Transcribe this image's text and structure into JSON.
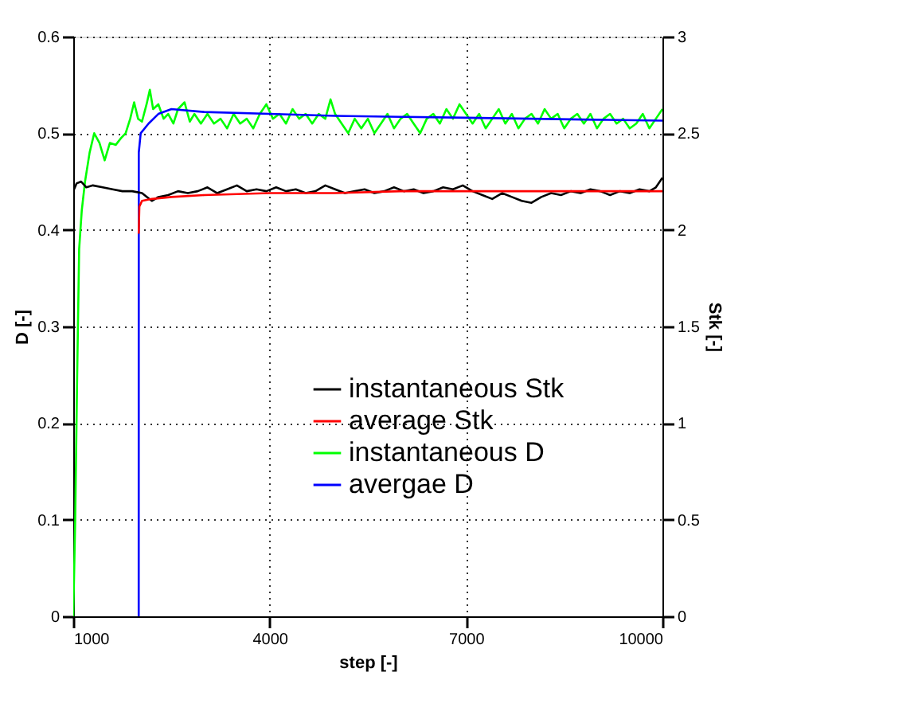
{
  "chart_data": {
    "type": "line",
    "xlabel": "step [-]",
    "ylabel": "D [-]",
    "y2label": "Stk [-]",
    "xlim": [
      1000,
      10000
    ],
    "xticks": [
      1000,
      4000,
      7000,
      10000
    ],
    "ylim": [
      0,
      0.6
    ],
    "yticks": [
      0,
      0.1,
      0.2,
      0.3,
      0.4,
      0.5,
      0.6
    ],
    "y2lim": [
      0,
      3
    ],
    "y2ticks": [
      0,
      0.5,
      1,
      1.5,
      2,
      2.5,
      3
    ],
    "grid": true,
    "legend": "right",
    "marker": "none",
    "line_style": "solid",
    "series": [
      {
        "name": "instantaneous Stk",
        "color": "#000000",
        "axis": "y2",
        "x": [
          1000,
          1050,
          1120,
          1200,
          1300,
          1450,
          1600,
          1750,
          1900,
          2050,
          2200,
          2300,
          2450,
          2600,
          2750,
          2900,
          3050,
          3200,
          3350,
          3500,
          3650,
          3800,
          3950,
          4100,
          4250,
          4400,
          4550,
          4700,
          4850,
          5000,
          5150,
          5300,
          5450,
          5600,
          5750,
          5900,
          6050,
          6200,
          6350,
          6500,
          6650,
          6800,
          6950,
          7100,
          7250,
          7400,
          7550,
          7700,
          7850,
          8000,
          8150,
          8300,
          8450,
          8600,
          8750,
          8900,
          9050,
          9200,
          9350,
          9500,
          9650,
          9800,
          9900,
          10000
        ],
        "values": [
          2.2,
          2.24,
          2.25,
          2.22,
          2.23,
          2.22,
          2.21,
          2.2,
          2.2,
          2.19,
          2.15,
          2.17,
          2.18,
          2.2,
          2.19,
          2.2,
          2.22,
          2.19,
          2.21,
          2.23,
          2.2,
          2.21,
          2.2,
          2.22,
          2.2,
          2.21,
          2.19,
          2.2,
          2.23,
          2.21,
          2.19,
          2.2,
          2.21,
          2.19,
          2.2,
          2.22,
          2.2,
          2.21,
          2.19,
          2.2,
          2.22,
          2.21,
          2.23,
          2.2,
          2.18,
          2.16,
          2.19,
          2.17,
          2.15,
          2.14,
          2.17,
          2.19,
          2.18,
          2.2,
          2.19,
          2.21,
          2.2,
          2.18,
          2.2,
          2.19,
          2.21,
          2.2,
          2.22,
          2.27
        ]
      },
      {
        "name": "average Stk",
        "color": "#ff0000",
        "axis": "y2",
        "x": [
          2000,
          2010,
          2050,
          2200,
          2500,
          3000,
          4000,
          5000,
          6000,
          7000,
          8000,
          9000,
          10000
        ],
        "values": [
          1.98,
          2.12,
          2.15,
          2.16,
          2.17,
          2.18,
          2.19,
          2.19,
          2.2,
          2.2,
          2.2,
          2.2,
          2.2
        ]
      },
      {
        "name": "instantaneous D",
        "color": "#00ff00",
        "x": [
          1000,
          1030,
          1060,
          1090,
          1130,
          1180,
          1250,
          1320,
          1400,
          1480,
          1560,
          1650,
          1730,
          1800,
          1870,
          1930,
          1990,
          2050,
          2120,
          2170,
          2220,
          2300,
          2380,
          2450,
          2530,
          2600,
          2700,
          2780,
          2850,
          2950,
          3050,
          3150,
          3250,
          3350,
          3450,
          3550,
          3650,
          3750,
          3850,
          3950,
          4050,
          4150,
          4250,
          4350,
          4450,
          4550,
          4650,
          4750,
          4850,
          4930,
          5000,
          5100,
          5200,
          5300,
          5400,
          5500,
          5600,
          5700,
          5800,
          5900,
          6000,
          6100,
          6200,
          6300,
          6400,
          6500,
          6600,
          6700,
          6800,
          6900,
          7000,
          7100,
          7200,
          7300,
          7400,
          7500,
          7600,
          7700,
          7800,
          7900,
          8000,
          8100,
          8200,
          8300,
          8400,
          8500,
          8600,
          8700,
          8800,
          8900,
          9000,
          9100,
          9200,
          9300,
          9400,
          9500,
          9600,
          9700,
          9800,
          9900,
          10000
        ],
        "values": [
          0,
          0.1,
          0.25,
          0.38,
          0.42,
          0.45,
          0.48,
          0.5,
          0.49,
          0.472,
          0.49,
          0.488,
          0.495,
          0.5,
          0.515,
          0.532,
          0.515,
          0.512,
          0.53,
          0.545,
          0.525,
          0.53,
          0.515,
          0.52,
          0.51,
          0.525,
          0.532,
          0.512,
          0.52,
          0.51,
          0.52,
          0.51,
          0.515,
          0.505,
          0.52,
          0.51,
          0.515,
          0.505,
          0.52,
          0.53,
          0.515,
          0.52,
          0.51,
          0.525,
          0.515,
          0.52,
          0.51,
          0.52,
          0.515,
          0.535,
          0.52,
          0.51,
          0.5,
          0.515,
          0.505,
          0.515,
          0.5,
          0.51,
          0.52,
          0.505,
          0.515,
          0.52,
          0.51,
          0.5,
          0.515,
          0.52,
          0.51,
          0.525,
          0.515,
          0.53,
          0.52,
          0.51,
          0.52,
          0.505,
          0.515,
          0.525,
          0.51,
          0.52,
          0.505,
          0.515,
          0.52,
          0.51,
          0.525,
          0.515,
          0.52,
          0.505,
          0.515,
          0.52,
          0.51,
          0.52,
          0.505,
          0.515,
          0.52,
          0.51,
          0.515,
          0.505,
          0.51,
          0.52,
          0.505,
          0.515,
          0.525
        ]
      },
      {
        "name": "avergae D",
        "color": "#0000ff",
        "x": [
          2000,
          2001,
          2030,
          2150,
          2300,
          2500,
          3000,
          4000,
          5000,
          6000,
          7000,
          8000,
          9000,
          10000
        ],
        "values": [
          0,
          0.48,
          0.5,
          0.51,
          0.52,
          0.525,
          0.522,
          0.52,
          0.518,
          0.517,
          0.516,
          0.515,
          0.514,
          0.513
        ]
      }
    ]
  }
}
